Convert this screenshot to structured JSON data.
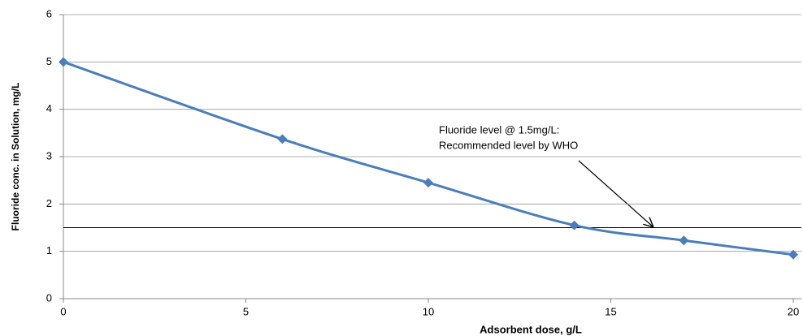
{
  "chart_data": {
    "type": "line",
    "x_label": "Adsorbent dose, g/L",
    "y_label": "Fluoride conc. in Solution, mg/L",
    "x": [
      0,
      6,
      10,
      14,
      17,
      20
    ],
    "series": [
      {
        "name": "Fluoride conc.",
        "color": "#4a7ebb",
        "values": [
          5,
          3.37,
          2.45,
          1.55,
          1.23,
          0.93
        ]
      }
    ],
    "xlim": [
      0,
      20
    ],
    "xticks": [
      0,
      5,
      10,
      15,
      20
    ],
    "ylim": [
      0,
      6
    ],
    "yticks": [
      0,
      1,
      2,
      3,
      4,
      5,
      6
    ],
    "grid": true,
    "reference_line": 1.5,
    "annotation": [
      "Fluoride level @ 1.5mg/L:",
      "Recommended level by WHO"
    ]
  }
}
